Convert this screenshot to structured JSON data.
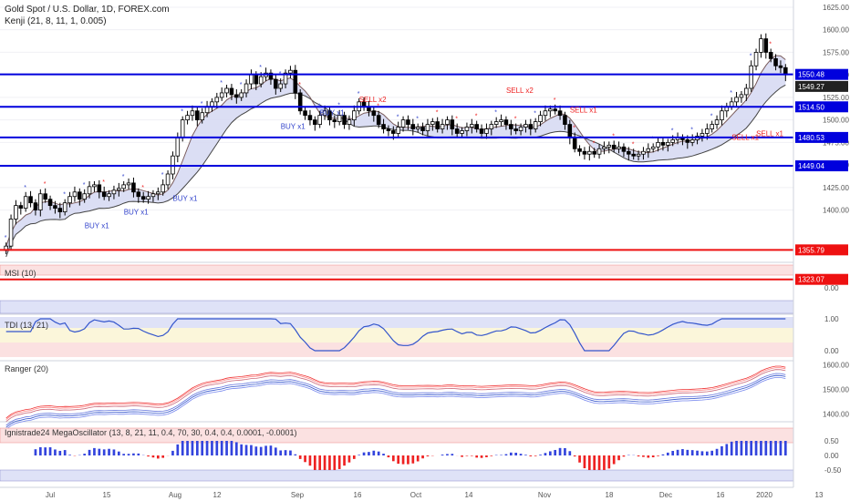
{
  "header": {
    "title": "Gold Spot / U.S. Dollar, 1D, FOREX.com",
    "indicator": "Kenji (21, 8, 11, 1, 0.005)"
  },
  "panes": {
    "msi": "MSI (10)",
    "tdi": "TDI (13, 21)",
    "ranger": "Ranger (20)",
    "mega": "Ignistrade24 MegaOscillator (13, 8, 21, 11, 0.4, 70, 30, 0.4, 0.4, 0.0001, -0.0001)"
  },
  "chart_data": {
    "type": "candlestick",
    "symbol": "Gold Spot / U.S. Dollar",
    "timeframe": "1D",
    "x_ticks": [
      "Jul",
      "15",
      "Aug",
      "12",
      "Sep",
      "16",
      "Oct",
      "14",
      "Nov",
      "18",
      "Dec",
      "16",
      "2020",
      "13"
    ],
    "y_ticks": [
      1400,
      1425,
      1450,
      1475,
      1500,
      1525,
      1550,
      1575,
      1600,
      1625
    ],
    "y_range": [
      1345,
      1630
    ],
    "closes": [
      1360,
      1390,
      1405,
      1402,
      1415,
      1408,
      1400,
      1418,
      1412,
      1405,
      1402,
      1398,
      1408,
      1415,
      1420,
      1412,
      1418,
      1426,
      1428,
      1420,
      1415,
      1418,
      1422,
      1424,
      1428,
      1430,
      1420,
      1415,
      1412,
      1415,
      1418,
      1420,
      1428,
      1440,
      1460,
      1480,
      1500,
      1505,
      1510,
      1500,
      1508,
      1515,
      1520,
      1525,
      1530,
      1535,
      1528,
      1525,
      1530,
      1540,
      1550,
      1540,
      1548,
      1552,
      1545,
      1535,
      1540,
      1552,
      1555,
      1530,
      1510,
      1505,
      1500,
      1495,
      1505,
      1510,
      1500,
      1498,
      1505,
      1495,
      1500,
      1510,
      1520,
      1515,
      1510,
      1505,
      1495,
      1490,
      1488,
      1485,
      1492,
      1500,
      1495,
      1490,
      1492,
      1488,
      1495,
      1498,
      1490,
      1495,
      1500,
      1490,
      1485,
      1488,
      1492,
      1495,
      1490,
      1485,
      1490,
      1495,
      1498,
      1500,
      1495,
      1490,
      1488,
      1492,
      1495,
      1490,
      1498,
      1505,
      1510,
      1512,
      1510,
      1505,
      1495,
      1480,
      1468,
      1465,
      1462,
      1465,
      1462,
      1468,
      1470,
      1472,
      1468,
      1470,
      1465,
      1462,
      1460,
      1462,
      1465,
      1468,
      1470,
      1475,
      1472,
      1475,
      1478,
      1480,
      1478,
      1475,
      1478,
      1482,
      1485,
      1490,
      1495,
      1500,
      1510,
      1515,
      1520,
      1525,
      1528,
      1535,
      1560,
      1575,
      1590,
      1575,
      1568,
      1560,
      1558,
      1550
    ],
    "horizontal_levels": [
      {
        "value": 1550.48,
        "label": "1550.48",
        "color": "#0000dd"
      },
      {
        "value": 1514.5,
        "label": "1514.50",
        "color": "#0000dd"
      },
      {
        "value": 1480.53,
        "label": "1480.53",
        "color": "#0000dd"
      },
      {
        "value": 1449.04,
        "label": "1449.04",
        "color": "#0000dd"
      },
      {
        "value": 1355.79,
        "label": "1355.79",
        "color": "#ee1111"
      },
      {
        "value": 1323.07,
        "label": "1323.07",
        "color": "#ee1111"
      }
    ],
    "last_price": {
      "value": 1549.27,
      "label": "1549.27"
    },
    "signals": [
      {
        "text": "BUY x1",
        "color": "#3344cc",
        "at": 16,
        "price": 1380
      },
      {
        "text": "BUY x1",
        "color": "#3344cc",
        "at": 24,
        "price": 1395
      },
      {
        "text": "BUY x1",
        "color": "#3344cc",
        "at": 34,
        "price": 1410
      },
      {
        "text": "BUY x1",
        "color": "#3344cc",
        "at": 56,
        "price": 1490
      },
      {
        "text": "BUY x1",
        "color": "#3344cc",
        "at": 64,
        "price": 1505
      },
      {
        "text": "SELL x2",
        "color": "#ee2222",
        "at": 72,
        "price": 1520
      },
      {
        "text": "SELL x2",
        "color": "#ee2222",
        "at": 102,
        "price": 1530
      },
      {
        "text": "SELL x1",
        "color": "#ee2222",
        "at": 115,
        "price": 1508
      },
      {
        "text": "SELL x1",
        "color": "#ee2222",
        "at": 148,
        "price": 1478
      },
      {
        "text": "SELL x1",
        "color": "#ee2222",
        "at": 153,
        "price": 1482
      }
    ],
    "msi_ticks": [
      0.0
    ],
    "tdi_ticks": [
      1.0,
      0.0
    ],
    "ranger_ticks": [
      1600,
      1500,
      1400
    ],
    "mega_ticks": [
      0.5,
      0.0,
      -0.5
    ]
  }
}
